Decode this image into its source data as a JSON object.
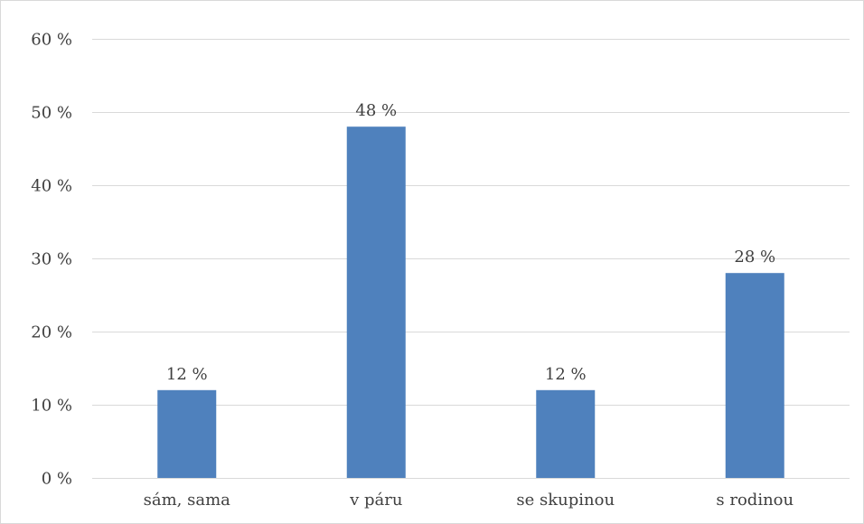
{
  "chart_data": {
    "type": "bar",
    "categories": [
      "sám, sama",
      "v páru",
      "se skupinou",
      "s rodinou"
    ],
    "values": [
      12,
      48,
      12,
      28
    ],
    "data_labels": [
      "12 %",
      "48 %",
      "12 %",
      "28 %"
    ],
    "y_ticks": [
      0,
      10,
      20,
      30,
      40,
      50,
      60
    ],
    "y_tick_labels": [
      "0 %",
      "10 %",
      "20 %",
      "30 %",
      "40 %",
      "50 %",
      "60 %"
    ],
    "ylim": [
      0,
      60
    ],
    "grid": true,
    "legend": "none",
    "bar_color": "#4f81bd",
    "title": "",
    "xlabel": "",
    "ylabel": ""
  }
}
